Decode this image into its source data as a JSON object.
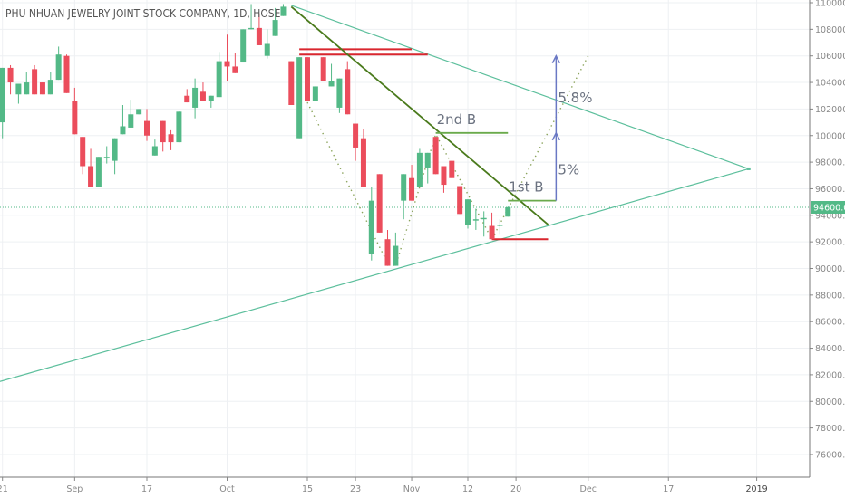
{
  "header": {
    "title": "PHU NHUAN JEWELRY JOINT STOCK COMPANY, 1D, HOSE"
  },
  "colors": {
    "up": "#53b987",
    "down": "#eb4d5c",
    "triangle": "#5cbf9c",
    "trendline": "#4a7a1c",
    "breakout": "#6aaa4c",
    "support": "#d9262e",
    "arrow": "#6a78c4",
    "path": "#8aa35a",
    "grid": "#eef0f3",
    "axis_text": "#888888"
  },
  "chart_data": {
    "type": "candlestick",
    "title": "PHU NHUAN JEWELRY JOINT STOCK COMPANY, 1D, HOSE",
    "ylim": [
      74000,
      110000
    ],
    "grid": true,
    "y_ticks": [
      "110000.0",
      "108000.0",
      "106000.0",
      "104000.0",
      "102000.0",
      "100000.0",
      "98000.0",
      "96000.0",
      "94000.0",
      "92000.0",
      "90000.0",
      "88000.0",
      "86000.0",
      "84000.0",
      "82000.0",
      "80000.0",
      "78000.0",
      "76000.0"
    ],
    "y_tick_values": [
      110000,
      108000,
      106000,
      104000,
      102000,
      100000,
      98000,
      96000,
      94000,
      92000,
      90000,
      88000,
      86000,
      84000,
      82000,
      80000,
      78000,
      76000
    ],
    "x_ticks": [
      {
        "date": "2018-08-21",
        "label": "21"
      },
      {
        "date": "2018-09-04",
        "label": "Sep"
      },
      {
        "date": "2018-09-17",
        "label": "17"
      },
      {
        "date": "2018-10-01",
        "label": "Oct"
      },
      {
        "date": "2018-10-15",
        "label": "15"
      },
      {
        "date": "2018-10-23",
        "label": "23"
      },
      {
        "date": "2018-11-01",
        "label": "Nov"
      },
      {
        "date": "2018-11-12",
        "label": "12"
      },
      {
        "date": "2018-11-20",
        "label": "20"
      },
      {
        "date": "2018-12-03",
        "label": "Dec"
      },
      {
        "date": "2018-12-17",
        "label": "17"
      },
      {
        "date": "2019-01-02",
        "label": "2019"
      }
    ],
    "last_price": {
      "value": 94600,
      "label": "94600.0"
    },
    "columns": [
      "date",
      "open",
      "high",
      "low",
      "close"
    ],
    "candles": [
      [
        "2018-08-21",
        101000,
        105100,
        99800,
        105100
      ],
      [
        "2018-08-22",
        105100,
        105300,
        103100,
        104000
      ],
      [
        "2018-08-23",
        103100,
        103900,
        102400,
        103900
      ],
      [
        "2018-08-24",
        103100,
        104800,
        103100,
        104000
      ],
      [
        "2018-08-27",
        105000,
        105300,
        103100,
        103100
      ],
      [
        "2018-08-28",
        104000,
        104000,
        103100,
        103100
      ],
      [
        "2018-08-29",
        103100,
        104800,
        103100,
        104200
      ],
      [
        "2018-08-30",
        104200,
        106700,
        104200,
        106100
      ],
      [
        "2018-08-31",
        106000,
        106100,
        103200,
        103200
      ],
      [
        "2018-09-04",
        102600,
        103600,
        100100,
        100100
      ],
      [
        "2018-09-05",
        99900,
        99900,
        97100,
        97700
      ],
      [
        "2018-09-06",
        97700,
        99000,
        96100,
        96100
      ],
      [
        "2018-09-07",
        96100,
        98400,
        96100,
        98400
      ],
      [
        "2018-09-10",
        98300,
        99200,
        97900,
        98400
      ],
      [
        "2018-09-11",
        98100,
        99800,
        97100,
        99800
      ],
      [
        "2018-09-12",
        100100,
        102300,
        100100,
        100700
      ],
      [
        "2018-09-13",
        100600,
        102700,
        100600,
        101600
      ],
      [
        "2018-09-14",
        101600,
        102000,
        101600,
        102000
      ],
      [
        "2018-09-17",
        101100,
        102000,
        99600,
        100000
      ],
      [
        "2018-09-18",
        98500,
        99700,
        98500,
        99200
      ],
      [
        "2018-09-19",
        101100,
        101100,
        98800,
        99500
      ],
      [
        "2018-09-20",
        100100,
        100400,
        98900,
        99500
      ],
      [
        "2018-09-21",
        99500,
        101800,
        99500,
        101800
      ],
      [
        "2018-09-24",
        103000,
        103500,
        102500,
        102500
      ],
      [
        "2018-09-25",
        102100,
        104300,
        101300,
        103600
      ],
      [
        "2018-09-26",
        103300,
        104000,
        102600,
        102600
      ],
      [
        "2018-09-27",
        102600,
        103000,
        102100,
        103000
      ],
      [
        "2018-09-28",
        102900,
        106300,
        102900,
        105600
      ],
      [
        "2018-10-01",
        105600,
        107600,
        104100,
        105200
      ],
      [
        "2018-10-02",
        105200,
        106200,
        104700,
        104700
      ],
      [
        "2018-10-03",
        105500,
        108000,
        105500,
        108000
      ],
      [
        "2018-10-04",
        108000,
        109900,
        108000,
        108100
      ],
      [
        "2018-10-05",
        108100,
        109200,
        106800,
        106800
      ],
      [
        "2018-10-08",
        106000,
        108000,
        105800,
        106900
      ],
      [
        "2018-10-09",
        107500,
        109600,
        107500,
        108700
      ],
      [
        "2018-10-10",
        109000,
        109900,
        109000,
        109700
      ],
      [
        "2018-10-11",
        105600,
        105600,
        102300,
        102300
      ],
      [
        "2018-10-12",
        99800,
        105900,
        99800,
        105900
      ],
      [
        "2018-10-15",
        105900,
        105900,
        102600,
        102600
      ],
      [
        "2018-10-16",
        102600,
        103700,
        102600,
        103700
      ],
      [
        "2018-10-17",
        105900,
        105900,
        104100,
        104100
      ],
      [
        "2018-10-18",
        103700,
        105400,
        103700,
        104100
      ],
      [
        "2018-10-19",
        102100,
        104300,
        101700,
        104300
      ],
      [
        "2018-10-22",
        105000,
        105600,
        101600,
        101600
      ],
      [
        "2018-10-23",
        100900,
        100900,
        98100,
        99100
      ],
      [
        "2018-10-24",
        99800,
        100500,
        96100,
        96100
      ],
      [
        "2018-10-25",
        91100,
        96100,
        90600,
        95100
      ],
      [
        "2018-10-26",
        97100,
        97100,
        92700,
        92700
      ],
      [
        "2018-10-29",
        92200,
        92900,
        90200,
        90200
      ],
      [
        "2018-10-30",
        90200,
        92700,
        90200,
        91700
      ],
      [
        "2018-10-31",
        95100,
        97100,
        93700,
        97100
      ],
      [
        "2018-11-01",
        96800,
        97800,
        95100,
        95100
      ],
      [
        "2018-11-02",
        96100,
        99000,
        96100,
        98700
      ],
      [
        "2018-11-05",
        97600,
        98700,
        96400,
        98700
      ],
      [
        "2018-11-06",
        99900,
        99900,
        97100,
        97100
      ],
      [
        "2018-11-07",
        97700,
        97700,
        95700,
        96300
      ],
      [
        "2018-11-08",
        98100,
        98100,
        96800,
        96800
      ],
      [
        "2018-11-09",
        96200,
        96200,
        94100,
        94100
      ],
      [
        "2018-11-12",
        93300,
        95200,
        93000,
        95200
      ],
      [
        "2018-11-13",
        93600,
        94500,
        92900,
        93700
      ],
      [
        "2018-11-14",
        93700,
        94300,
        92400,
        93800
      ],
      [
        "2018-11-15",
        93200,
        94200,
        92200,
        92200
      ],
      [
        "2018-11-16",
        93200,
        93700,
        92600,
        93300
      ],
      [
        "2018-11-19",
        93900,
        94700,
        93900,
        94600
      ]
    ],
    "drawings": {
      "triangle_upper": [
        [
          "2018-10-11",
          109800
        ],
        [
          "2018-12-31",
          97500
        ]
      ],
      "triangle_lower": [
        [
          "2018-08-21",
          81500
        ],
        [
          "2018-12-31",
          97500
        ]
      ],
      "downtrend": [
        [
          "2018-10-11",
          109700
        ],
        [
          "2018-11-26",
          93300
        ]
      ],
      "resistance_lines": [
        {
          "from": [
            "2018-10-12",
            106500
          ],
          "to": [
            "2018-11-01",
            106500
          ]
        },
        {
          "from": [
            "2018-10-12",
            106100
          ],
          "to": [
            "2018-11-05",
            106100
          ]
        }
      ],
      "support_line": {
        "from": [
          "2018-11-15",
          92200
        ],
        "to": [
          "2018-11-26",
          92200
        ]
      },
      "breakout_lines": [
        {
          "label": "2nd B",
          "from": [
            "2018-11-06",
            100200
          ],
          "to": [
            "2018-11-19",
            100200
          ]
        },
        {
          "label": "1st B",
          "from": [
            "2018-11-19",
            95100
          ],
          "to": [
            "2018-11-27",
            95100
          ]
        }
      ],
      "projection_path": [
        [
          "2018-10-15",
          102500
        ],
        [
          "2018-10-29",
          90400
        ],
        [
          "2018-10-30",
          90200
        ],
        [
          "2018-11-06",
          100100
        ],
        [
          "2018-11-15",
          92200
        ],
        [
          "2018-12-03",
          106000
        ]
      ],
      "arrow": {
        "date": "2018-11-27",
        "from": 95100,
        "mid": 100200,
        "to": 106000
      },
      "arrow_labels": [
        {
          "text": "5%",
          "price": 97500
        },
        {
          "text": "5.8%",
          "price": 102900
        }
      ]
    }
  }
}
